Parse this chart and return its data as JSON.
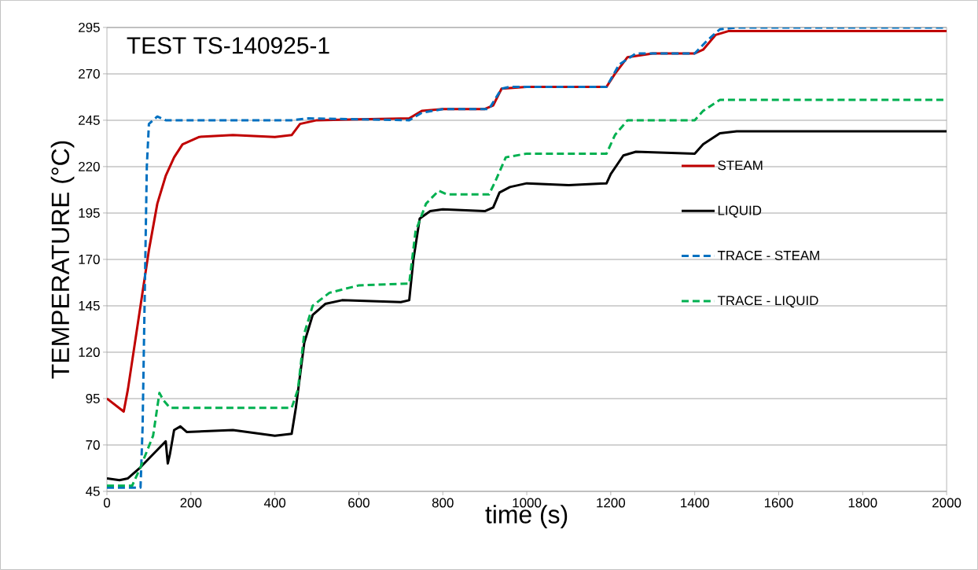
{
  "chart_data": {
    "type": "line",
    "title": "TEST TS-140925-1",
    "xlabel": "time (s)",
    "ylabel": "TEMPERATURE (°C)",
    "xlim": [
      0,
      2000
    ],
    "xticks": [
      0,
      200,
      400,
      600,
      800,
      1000,
      1200,
      1400,
      1600,
      1800,
      2000
    ],
    "ylim": [
      45,
      295
    ],
    "yticks": [
      45,
      70,
      95,
      120,
      145,
      170,
      195,
      220,
      245,
      270,
      295
    ],
    "grid": "y",
    "legend": "right",
    "marker": "none",
    "series": [
      {
        "name": "STEAM",
        "color": "#c00000",
        "line_style": "solid",
        "x": [
          0,
          40,
          50,
          70,
          90,
          100,
          120,
          140,
          160,
          180,
          220,
          300,
          400,
          440,
          460,
          500,
          600,
          720,
          750,
          800,
          900,
          920,
          940,
          1000,
          1100,
          1190,
          1210,
          1240,
          1300,
          1400,
          1420,
          1450,
          1480,
          2000
        ],
        "values": [
          95,
          88,
          100,
          130,
          160,
          175,
          200,
          215,
          225,
          232,
          236,
          237,
          236,
          237,
          243,
          245,
          245.5,
          246,
          250,
          251,
          251,
          253,
          262,
          263,
          263,
          263,
          270,
          279,
          281,
          281,
          283,
          291,
          293,
          293
        ]
      },
      {
        "name": "LIQUID",
        "color": "#000000",
        "line_style": "solid",
        "x": [
          0,
          30,
          50,
          80,
          110,
          140,
          145,
          150,
          160,
          175,
          190,
          300,
          400,
          440,
          450,
          470,
          490,
          520,
          560,
          700,
          720,
          730,
          745,
          770,
          800,
          900,
          920,
          935,
          960,
          1000,
          1100,
          1190,
          1200,
          1230,
          1260,
          1400,
          1420,
          1460,
          1500,
          2000
        ],
        "values": [
          52,
          51,
          52,
          58,
          65,
          72,
          60,
          65,
          78,
          80,
          77,
          78,
          75,
          76,
          90,
          125,
          140,
          146,
          148,
          147,
          148,
          170,
          192,
          196,
          197,
          196,
          198,
          206,
          209,
          211,
          210,
          211,
          216,
          226,
          228,
          227,
          232,
          238,
          239,
          239
        ]
      },
      {
        "name": "TRACE - STEAM",
        "color": "#0070c0",
        "line_style": "dashed",
        "x": [
          0,
          80,
          85,
          90,
          95,
          100,
          120,
          140,
          300,
          440,
          480,
          600,
          720,
          750,
          800,
          910,
          940,
          960,
          1190,
          1220,
          1260,
          1400,
          1430,
          1460,
          1500,
          2000
        ],
        "values": [
          47,
          47,
          80,
          150,
          220,
          243,
          247,
          245,
          245,
          245,
          246,
          245.5,
          245,
          249,
          251,
          251,
          262,
          263,
          263,
          275,
          281,
          281,
          288,
          294,
          295,
          295
        ]
      },
      {
        "name": "TRACE - LIQUID",
        "color": "#00b050",
        "line_style": "dashed",
        "x": [
          0,
          60,
          80,
          110,
          125,
          135,
          150,
          440,
          455,
          470,
          490,
          530,
          600,
          720,
          735,
          760,
          790,
          810,
          910,
          925,
          950,
          1000,
          1190,
          1210,
          1240,
          1400,
          1420,
          1460,
          2000
        ],
        "values": [
          48,
          48,
          58,
          75,
          98,
          94,
          90,
          90,
          100,
          130,
          145,
          152,
          156,
          157,
          185,
          200,
          207,
          205,
          205,
          212,
          225,
          227,
          227,
          237,
          245,
          245,
          250,
          256,
          256
        ]
      }
    ]
  }
}
